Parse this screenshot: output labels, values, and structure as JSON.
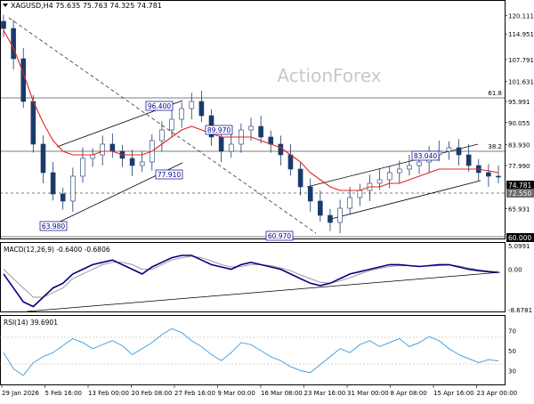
{
  "header": {
    "symbol_line": "XAGUSD,H4  75.635 75.763 74.325 74.781",
    "watermark": "ActionForex"
  },
  "main_axis": {
    "ticks": [
      "120.111",
      "114.951",
      "107.791",
      "101.631",
      "95.991",
      "90.055",
      "83.930",
      "77.990",
      "74.781",
      "72.550",
      "65.931",
      "60.000"
    ]
  },
  "time_axis": {
    "labels": [
      "29 Jan 2026",
      "5 Feb 16:00",
      "13 Feb 00:00",
      "20 Feb 08:00",
      "27 Feb 16:00",
      "9 Mar 00:00",
      "16 Mar 08:00",
      "23 Mar 16:00",
      "31 Mar 00:00",
      "8 Apr 08:00",
      "15 Apr 16:00",
      "23 Apr 00:00"
    ]
  },
  "annotations": {
    "high_feb": "96.400",
    "low_feb": "63.980",
    "mid_feb": "77.910",
    "mar_high": "89.970",
    "mar_low": "60.970",
    "apr_high": "83.040",
    "last_price": "74.781",
    "support": "72.550",
    "base_level": "60.000",
    "fib_618": "61.8",
    "fib_382": "38.2"
  },
  "macd": {
    "label": "MACD(12,26,9) -0.6400 -0.6806",
    "ticks": [
      "5.0991",
      "0.00",
      "-8.6781"
    ]
  },
  "rsi": {
    "label": "RSI(14) 39.6901",
    "ticks": [
      "70",
      "50",
      "30"
    ]
  },
  "colors": {
    "price_bars": "#1a3a6b",
    "moving_average": "#e02424",
    "macd_line": "#000080",
    "signal_line": "#9a9a9a",
    "rsi_line": "#4aa3df",
    "last_price_bg": "#000000",
    "support_bg": "#6a6a6a"
  },
  "chart_data": {
    "type": "candlestick",
    "title": "XAGUSD,H4",
    "ylim": [
      57.5,
      124
    ],
    "ohlc_close": [
      116.5,
      108,
      96,
      84,
      76,
      70,
      68,
      75,
      80,
      81,
      84,
      82,
      80,
      78,
      79,
      85,
      88,
      91,
      94,
      96,
      92,
      86,
      82,
      84,
      88,
      89,
      86,
      84,
      81,
      77,
      72,
      68,
      64,
      62,
      66,
      69,
      71,
      73,
      74,
      76,
      77,
      78,
      79,
      81,
      82,
      83,
      81,
      78,
      76,
      75,
      74.78
    ],
    "last": 74.781,
    "moving_average": [
      116,
      111,
      104,
      96,
      90,
      85,
      82,
      81,
      81,
      81,
      82,
      82,
      81,
      81,
      81,
      82,
      84,
      86,
      88,
      89,
      88,
      87,
      86,
      86,
      86,
      86,
      85,
      84,
      83,
      81,
      79,
      76,
      74,
      72,
      71,
      71,
      71,
      72,
      72,
      73,
      73,
      74,
      75,
      76,
      77,
      77,
      77,
      77,
      77,
      76.5,
      76
    ],
    "horizontal_levels": [
      98.5,
      83.93,
      72.55,
      60.0
    ],
    "macd": {
      "ylim": [
        -8.6781,
        5.0991
      ],
      "macd_line": [
        -1,
        -4,
        -7,
        -8,
        -6,
        -4,
        -3,
        -1,
        0,
        1,
        1.5,
        2,
        1,
        0,
        -1,
        0.5,
        1.5,
        2.5,
        3,
        3,
        2,
        1,
        0.5,
        0,
        1,
        1.5,
        1,
        0.5,
        0,
        -1,
        -2,
        -3,
        -3.5,
        -3,
        -2,
        -1,
        -0.5,
        0,
        0.5,
        1,
        1,
        0.8,
        0.6,
        0.8,
        1,
        1,
        0.5,
        0,
        -0.3,
        -0.5,
        -0.64
      ],
      "signal_line": [
        0,
        -2,
        -4,
        -6,
        -6,
        -5,
        -4,
        -2,
        -1,
        0,
        1,
        1.5,
        1.5,
        1,
        0,
        0,
        1,
        2,
        2.5,
        2.8,
        2.5,
        1.8,
        1,
        0.5,
        0.6,
        1,
        1,
        0.8,
        0.3,
        -0.3,
        -1.2,
        -2,
        -2.8,
        -3,
        -2.5,
        -1.8,
        -1,
        -0.3,
        0.2,
        0.6,
        0.8,
        0.8,
        0.7,
        0.7,
        0.8,
        0.9,
        0.7,
        0.3,
        -0.1,
        -0.4,
        -0.68
      ]
    },
    "rsi": {
      "ylim": [
        18,
        82
      ],
      "values": [
        48,
        32,
        25,
        38,
        44,
        48,
        55,
        62,
        58,
        52,
        56,
        60,
        55,
        46,
        52,
        58,
        66,
        72,
        68,
        60,
        54,
        46,
        40,
        48,
        58,
        56,
        50,
        44,
        40,
        34,
        30,
        28,
        36,
        44,
        52,
        48,
        56,
        60,
        54,
        58,
        62,
        54,
        58,
        64,
        60,
        52,
        46,
        42,
        38,
        41,
        39.69
      ]
    }
  }
}
